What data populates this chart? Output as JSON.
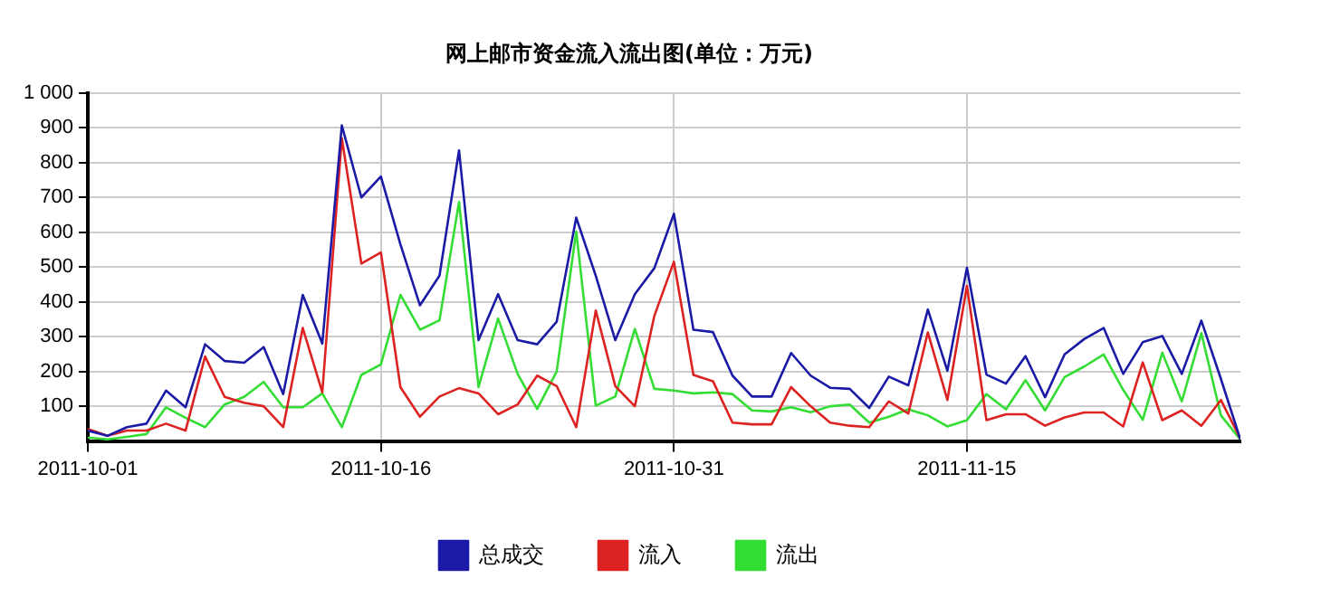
{
  "chart_data": {
    "type": "line",
    "title": "网上邮市资金流入流出图(单位：万元)",
    "x": [
      "2011-10-01",
      "2011-10-02",
      "2011-10-03",
      "2011-10-04",
      "2011-10-05",
      "2011-10-06",
      "2011-10-07",
      "2011-10-08",
      "2011-10-09",
      "2011-10-10",
      "2011-10-11",
      "2011-10-12",
      "2011-10-13",
      "2011-10-14",
      "2011-10-15",
      "2011-10-16",
      "2011-10-17",
      "2011-10-18",
      "2011-10-19",
      "2011-10-20",
      "2011-10-21",
      "2011-10-22",
      "2011-10-23",
      "2011-10-24",
      "2011-10-25",
      "2011-10-26",
      "2011-10-27",
      "2011-10-28",
      "2011-10-29",
      "2011-10-30",
      "2011-10-31",
      "2011-11-01",
      "2011-11-02",
      "2011-11-03",
      "2011-11-04",
      "2011-11-05",
      "2011-11-06",
      "2011-11-07",
      "2011-11-08",
      "2011-11-09",
      "2011-11-10",
      "2011-11-11",
      "2011-11-12",
      "2011-11-13",
      "2011-11-14",
      "2011-11-15",
      "2011-11-16",
      "2011-11-17",
      "2011-11-18",
      "2011-11-19",
      "2011-11-20",
      "2011-11-21",
      "2011-11-22",
      "2011-11-23",
      "2011-11-24",
      "2011-11-25",
      "2011-11-26",
      "2011-11-27",
      "2011-11-28",
      "2011-11-29"
    ],
    "series": [
      {
        "name": "总成交",
        "color": "#1a1aa6",
        "values": [
          30,
          15,
          40,
          50,
          145,
          97,
          278,
          230,
          225,
          270,
          135,
          420,
          280,
          907,
          700,
          760,
          565,
          390,
          475,
          835,
          290,
          422,
          290,
          278,
          343,
          642,
          475,
          290,
          422,
          497,
          653,
          320,
          313,
          188,
          128,
          128,
          253,
          188,
          153,
          150,
          95,
          185,
          160,
          378,
          202,
          498,
          191,
          165,
          244,
          126,
          249,
          293,
          325,
          193,
          284,
          302,
          193,
          346,
          179,
          4
        ]
      },
      {
        "name": "流入",
        "color": "#dd2222",
        "values": [
          35,
          15,
          30,
          30,
          50,
          30,
          243,
          127,
          110,
          100,
          40,
          325,
          140,
          870,
          510,
          542,
          155,
          70,
          128,
          152,
          137,
          77,
          105,
          188,
          158,
          40,
          375,
          158,
          100,
          360,
          515,
          190,
          172,
          53,
          48,
          48,
          155,
          100,
          53,
          44,
          40,
          114,
          79,
          312,
          118,
          446,
          60,
          77,
          77,
          44,
          68,
          82,
          82,
          42,
          226,
          60,
          88,
          44,
          118,
          7
        ]
      },
      {
        "name": "流出",
        "color": "#33dd33",
        "values": [
          10,
          5,
          12,
          20,
          97,
          67,
          40,
          105,
          127,
          170,
          97,
          97,
          137,
          40,
          190,
          220,
          420,
          320,
          347,
          687,
          155,
          352,
          193,
          92,
          200,
          602,
          102,
          128,
          322,
          150,
          145,
          137,
          140,
          135,
          88,
          85,
          97,
          83,
          100,
          105,
          53,
          70,
          91,
          74,
          42,
          60,
          135,
          91,
          175,
          88,
          184,
          214,
          249,
          147,
          61,
          254,
          114,
          310,
          74,
          4
        ]
      }
    ],
    "xlim": [
      "2011-10-01",
      "2011-11-29"
    ],
    "xticks": [
      "2011-10-01",
      "2011-10-16",
      "2011-10-31",
      "2011-11-15"
    ],
    "ylim": [
      0,
      1000
    ],
    "yticks": [
      100,
      200,
      300,
      400,
      500,
      600,
      700,
      800,
      900,
      {
        "value": 1000,
        "label": "1 000"
      }
    ],
    "grid": true,
    "legend": "bottom",
    "marker": "none",
    "line_style": "solid"
  }
}
